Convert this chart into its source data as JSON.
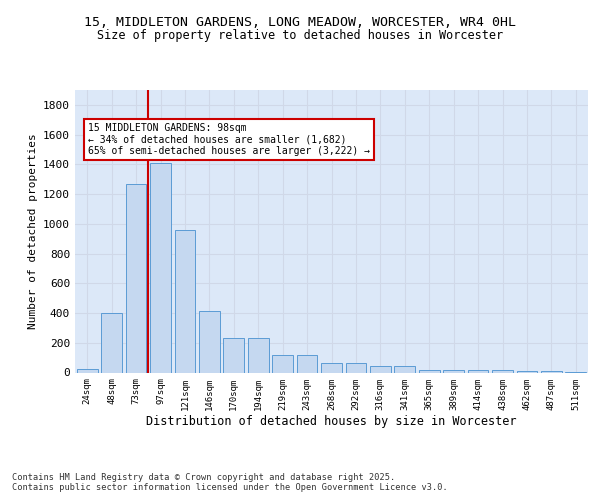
{
  "title1": "15, MIDDLETON GARDENS, LONG MEADOW, WORCESTER, WR4 0HL",
  "title2": "Size of property relative to detached houses in Worcester",
  "xlabel": "Distribution of detached houses by size in Worcester",
  "ylabel": "Number of detached properties",
  "categories": [
    "24sqm",
    "48sqm",
    "73sqm",
    "97sqm",
    "121sqm",
    "146sqm",
    "170sqm",
    "194sqm",
    "219sqm",
    "243sqm",
    "268sqm",
    "292sqm",
    "316sqm",
    "341sqm",
    "365sqm",
    "389sqm",
    "414sqm",
    "438sqm",
    "462sqm",
    "487sqm",
    "511sqm"
  ],
  "values": [
    25,
    400,
    1265,
    1410,
    960,
    415,
    235,
    235,
    120,
    120,
    65,
    65,
    45,
    45,
    20,
    20,
    15,
    15,
    10,
    10,
    5
  ],
  "bar_color": "#c5d8f0",
  "bar_edge_color": "#5b9bd5",
  "grid_color": "#d0d8e8",
  "background_color": "#dce8f8",
  "annotation_box_color": "#cc0000",
  "vline_color": "#cc0000",
  "vline_x": 2.5,
  "annotation_text": "15 MIDDLETON GARDENS: 98sqm\n← 34% of detached houses are smaller (1,682)\n65% of semi-detached houses are larger (3,222) →",
  "footnote": "Contains HM Land Registry data © Crown copyright and database right 2025.\nContains public sector information licensed under the Open Government Licence v3.0.",
  "ylim": [
    0,
    1900
  ],
  "yticks": [
    0,
    200,
    400,
    600,
    800,
    1000,
    1200,
    1400,
    1600,
    1800
  ]
}
